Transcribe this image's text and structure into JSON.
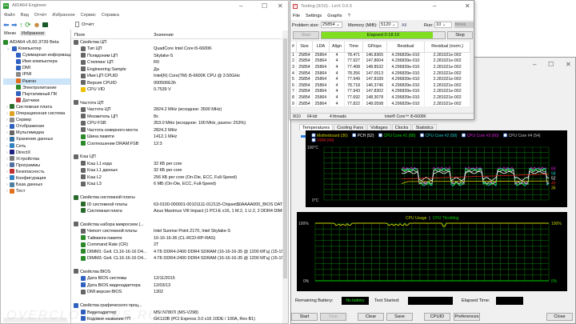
{
  "aida": {
    "title": "AIDA64 Engineer",
    "menu": [
      "Файл",
      "Вид",
      "Отчёт",
      "Избранное",
      "Сервис",
      "Справка"
    ],
    "toolbar_report": "Отчёт",
    "tabs": [
      "Меню",
      "Избранное"
    ],
    "tree": [
      {
        "label": "AIDA64 v5.60.3739 Beta",
        "level": 0,
        "color": "#2a8a2a"
      },
      {
        "label": "Компьютер",
        "level": 1,
        "color": "#3060c0"
      },
      {
        "label": "Суммарная информация",
        "level": 2,
        "color": "#3060c0"
      },
      {
        "label": "Имя компьютера",
        "level": 2,
        "color": "#3060c0"
      },
      {
        "label": "DMI",
        "level": 2,
        "color": "#3060c0"
      },
      {
        "label": "IPMI",
        "level": 2,
        "color": "#888"
      },
      {
        "label": "Разгон",
        "level": 2,
        "color": "#e07020",
        "selected": true
      },
      {
        "label": "Электропитание",
        "level": 2,
        "color": "#2a8a2a"
      },
      {
        "label": "Портативный ПК",
        "level": 2,
        "color": "#3060c0"
      },
      {
        "label": "Датчики",
        "level": 2,
        "color": "#c04040"
      },
      {
        "label": "Системная плата",
        "level": 1,
        "color": "#2a6a2a"
      },
      {
        "label": "Операционная система",
        "level": 1,
        "color": "#e0a020"
      },
      {
        "label": "Сервер",
        "level": 1,
        "color": "#888"
      },
      {
        "label": "Отображение",
        "level": 1,
        "color": "#3060c0"
      },
      {
        "label": "Мультимедиа",
        "level": 1,
        "color": "#666"
      },
      {
        "label": "Хранение данных",
        "level": 1,
        "color": "#3070a0"
      },
      {
        "label": "Сеть",
        "level": 1,
        "color": "#3080c0"
      },
      {
        "label": "DirectX",
        "level": 1,
        "color": "#202080"
      },
      {
        "label": "Устройства",
        "level": 1,
        "color": "#777"
      },
      {
        "label": "Программы",
        "level": 1,
        "color": "#5070a0"
      },
      {
        "label": "Безопасность",
        "level": 1,
        "color": "#c03030"
      },
      {
        "label": "Конфигурация",
        "level": 1,
        "color": "#3080c0"
      },
      {
        "label": "База данных",
        "level": 1,
        "color": "#5080a0"
      },
      {
        "label": "Тест",
        "level": 1,
        "color": "#e07020"
      }
    ],
    "columns": [
      "Поле",
      "Значение"
    ],
    "rows": [
      {
        "f": "Свойства ЦП",
        "g": true
      },
      {
        "f": "Тип ЦП",
        "v": "QuadCore Intel Core i5-6600K"
      },
      {
        "f": "Псевдоним ЦП",
        "v": "Skylake-S"
      },
      {
        "f": "Степпинг ЦП",
        "v": "R0"
      },
      {
        "f": "Engineering Sample",
        "v": "Да"
      },
      {
        "f": "Имя ЦП CPUID",
        "v": "Intel(R) Core(TM) i5-6600K CPU @ 3.50GHz"
      },
      {
        "f": "Версия CPUID",
        "v": "000506E3h"
      },
      {
        "f": "CPU VID",
        "v": "0.7539 V",
        "warn": true
      },
      {},
      {
        "f": "Частота ЦП",
        "g": true
      },
      {
        "f": "Частота ЦП",
        "v": "2824.2 MHz  (исходное: 3500 MHz)"
      },
      {
        "f": "Множитель ЦП",
        "v": "8x"
      },
      {
        "f": "CPU FSB",
        "v": "353.0 MHz  (исходное: 100 MHz, разгон: 253%)"
      },
      {
        "f": "Частота северного моста",
        "v": "2824.2 MHz"
      },
      {
        "f": "Шина памяти",
        "v": "1412.1 MHz",
        "mem": true
      },
      {
        "f": "Соотношение DRAM:FSB",
        "v": "12:3",
        "mem": true
      },
      {},
      {
        "f": "Кэш ЦП",
        "g": true
      },
      {
        "f": "Кэш L1 кода",
        "v": "32 КБ per core"
      },
      {
        "f": "Кэш L1 данных",
        "v": "32 КБ per core"
      },
      {
        "f": "Кэш L2",
        "v": "256 КБ per core  (On-Die, ECC, Full-Speed)"
      },
      {
        "f": "Кэш L3",
        "v": "6 МБ  (On-Die, ECC, Full-Speed)"
      },
      {},
      {
        "f": "Свойства системной платы",
        "g": true,
        "mb": true
      },
      {
        "f": "ID системной платы",
        "v": "63-0100-000001-00101111-012115-Chipset$0AAAA000_BIOS DATE: ...",
        "mb": true
      },
      {
        "f": "Системная плата",
        "v": "Asus Maximus VIII Impact  (1 PCI-E x16, 1 M.2, 1 U.2, 2 DDR4 DIMM...",
        "mb": true
      },
      {},
      {
        "f": "Свойства набора микросхем (...",
        "g": true
      },
      {
        "f": "Чипсет системной платы",
        "v": "Intel Sunrise Point Z170, Intel Skylake-S"
      },
      {
        "f": "Тайминги памяти",
        "v": "16-16-16-36  (CL-RCD-RP-RAS)",
        "mem": true
      },
      {
        "f": "Command Rate (CR)",
        "v": "2T",
        "mem": true
      },
      {
        "f": "DIMM1: Geil. CL16-16-16 D4...",
        "v": "4 ГБ DDR4-2400 DDR4 SDRAM  (16-16-16-35 @ 1200 МГц)  (15-15-...",
        "mem": true
      },
      {
        "f": "DIMM3: Geil. CL16-16-16 D4...",
        "v": "4 ГБ DDR4-2400 DDR4 SDRAM  (16-16-16-35 @ 1200 МГц)  (15-15-...",
        "mem": true
      },
      {},
      {
        "f": "Свойства BIOS",
        "g": true
      },
      {
        "f": "Дата BIOS системы",
        "v": "12/11/2015",
        "bios": true
      },
      {
        "f": "Дата BIOS видеоадаптера",
        "v": "12/03/13",
        "bios": true
      },
      {
        "f": "DMI версия BIOS",
        "v": "1302"
      },
      {},
      {
        "f": "Свойства графического проц...",
        "g": true,
        "bios": true
      },
      {
        "f": "Видеоадаптер",
        "v": "MSI N780Ti (MS-V298)",
        "bios": true
      },
      {
        "f": "Кодовое название ГП",
        "v": "GK110B  (PCI Express 3.0 x16 10DE / 100A, Rev B1)",
        "bios": true
      }
    ]
  },
  "linx": {
    "title": "Testing (9/10) - LinX 0.6.5",
    "menu": [
      "File",
      "Settings",
      "Graphs",
      "?"
    ],
    "problem_size_label": "Problem size:",
    "problem_size": "25854",
    "memory_label": "Memory (MiB):",
    "memory": "5120",
    "all": "All",
    "run_label": "Run:",
    "run": "10",
    "run_unit": "times",
    "start": "Start",
    "stop": "Stop",
    "elapsed": "Elapsed 0:18:10",
    "progress": 0.9,
    "columns": [
      "#",
      "Size",
      "LDA",
      "Align",
      "Time",
      "GFlops",
      "Residual",
      "Residual (norm.)"
    ],
    "rows": [
      [
        "1",
        "25854",
        "25864",
        "4",
        "78.471",
        "146.8365",
        "4.296839e-010",
        "2.281021e-002"
      ],
      [
        "2",
        "25854",
        "25864",
        "4",
        "77.927",
        "147.8604",
        "4.296839e-010",
        "2.281021e-002"
      ],
      [
        "3",
        "25854",
        "25864",
        "4",
        "77.408",
        "148.8532",
        "4.296839e-010",
        "2.281021e-002"
      ],
      [
        "4",
        "25854",
        "25864",
        "4",
        "78.356",
        "147.0513",
        "4.296839e-010",
        "2.281021e-002"
      ],
      [
        "5",
        "25854",
        "25864",
        "4",
        "77.949",
        "147.8189",
        "4.296839e-010",
        "2.281021e-002"
      ],
      [
        "6",
        "25854",
        "25864",
        "4",
        "78.718",
        "146.3746",
        "4.296839e-010",
        "2.281021e-002"
      ],
      [
        "7",
        "25854",
        "25864",
        "4",
        "77.943",
        "147.8302",
        "4.296839e-010",
        "2.281021e-002"
      ],
      [
        "8",
        "25854",
        "25864",
        "4",
        "77.692",
        "148.3078",
        "4.296839e-010",
        "2.281021e-002"
      ],
      [
        "9",
        "25854",
        "25864",
        "4",
        "77.822",
        "148.0598",
        "4.296839e-010",
        "2.281021e-002"
      ]
    ],
    "status": [
      "9/10",
      "64-bit",
      "4 threads",
      "Intel® Core™ i5-6600K"
    ]
  },
  "stability": {
    "tabs": [
      "Temperatures",
      "Cooling Fans",
      "Voltages",
      "Clocks",
      "Statistics"
    ],
    "temp_chart": {
      "legend": [
        {
          "label": "Motherboard (36)",
          "color": "#d0d000"
        },
        {
          "label": "PCH (52)",
          "color": "#ffffff"
        },
        {
          "label": "CPU Core #1 (58)",
          "color": "#00e000"
        },
        {
          "label": "CPU Core #2 (58)",
          "color": "#20d0d0"
        },
        {
          "label": "CPU Core #3 (60)",
          "color": "#e020e0"
        },
        {
          "label": "CPU Core #4 (54)",
          "color": "#c0c0c0"
        },
        {
          "label": "VRM (49)",
          "color": "#e02020"
        }
      ],
      "y_top": "100°C",
      "y_bottom": "0°C",
      "end_labels": [
        "60",
        "58",
        "52",
        "49",
        "36"
      ]
    },
    "usage_chart": {
      "legend": [
        "CPU Usage",
        "|",
        "CPU Throttling"
      ],
      "usage_color": "#c8d800",
      "throttle_color": "#00d000",
      "y_top": "100%",
      "y_bottom": "0%",
      "right_top": "100%",
      "right_bottom": "0%"
    },
    "battery_label": "Remaining Battery:",
    "battery": "No battery",
    "test_started_label": "Test Started:",
    "elapsed_label": "Elapsed Time:",
    "buttons": [
      "Start",
      "Stop",
      "Clear",
      "Save",
      "CPUID",
      "Preferences",
      "Close"
    ]
  },
  "watermark": "OVERCLOCKERS.RU"
}
